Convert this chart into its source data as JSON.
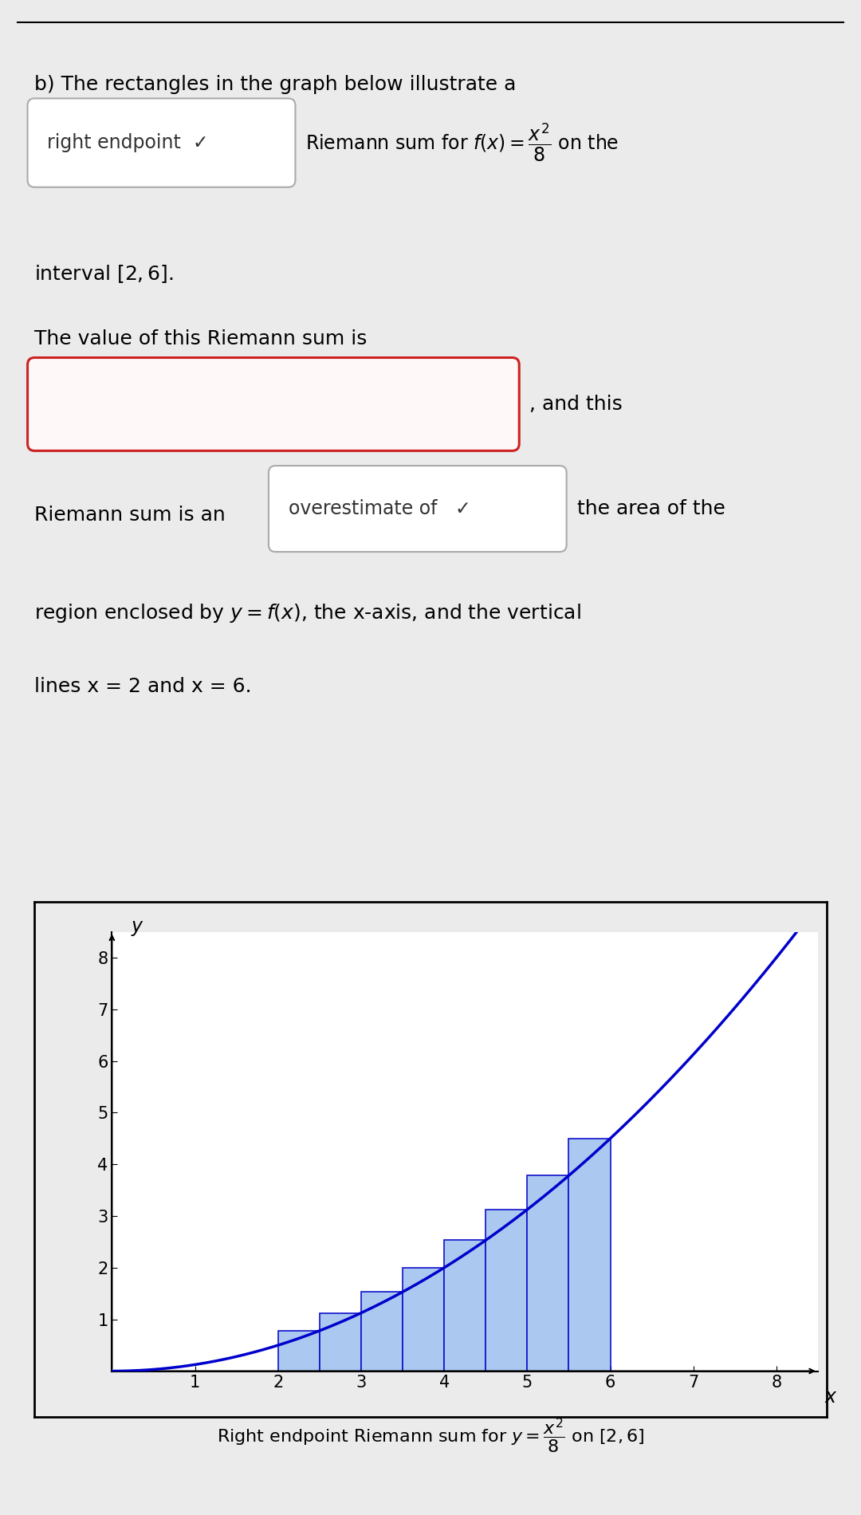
{
  "title_line": "b) The rectangles in the graph below illustrate a",
  "dropdown_label": "right endpoint",
  "riemann_label": "Riemann sum for $f(x) = \\dfrac{x^2}{8}$ on the",
  "interval_line": "interval $[2, 6]$.",
  "value_line": "The value of this Riemann sum is",
  "and_this": ", and this",
  "sum_is_an": "Riemann sum is an",
  "overestimate_label": "overestimate of",
  "area_of_the": "the area of the",
  "region_line": "region enclosed by $y = f(x)$, the x-axis, and the vertical",
  "lines_line": "lines x = 2 and x = 6.",
  "caption": "Right endpoint Riemann sum for $y = \\dfrac{x^2}{8}$ on $[2, 6]$",
  "bg_color": "#ebebeb",
  "plot_bg_color": "#ffffff",
  "bar_color": "#aac8f0",
  "bar_edge_color": "#1010cc",
  "curve_color": "#0000cc",
  "n_rectangles": 8,
  "x_start": 2,
  "x_end": 6,
  "x_plot_min": 0,
  "x_plot_max": 8.5,
  "y_plot_min": 0,
  "y_plot_max": 8.5,
  "x_ticks": [
    1,
    2,
    3,
    4,
    5,
    6,
    7,
    8
  ],
  "y_ticks": [
    1,
    2,
    3,
    4,
    5,
    6,
    7,
    8
  ]
}
